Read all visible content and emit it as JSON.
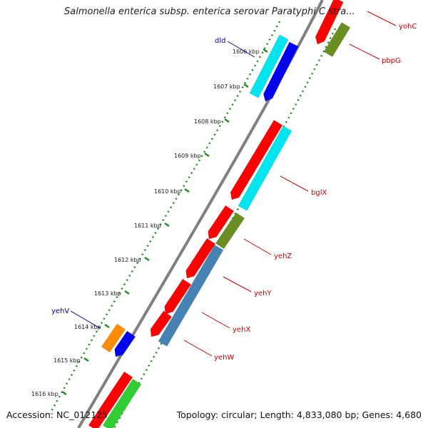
{
  "title": "Salmonella enterica subsp. enterica serovar Paratyphi C stra...",
  "accession": "Accession: NC_012125",
  "summary": "Topology: circular; Length: 4,833,080 bp; Genes: 4,680",
  "ticks": [
    "1606 kbp",
    "1607 kbp",
    "1608 kbp",
    "1609 kbp",
    "1610 kbp",
    "1611 kbp",
    "1612 kbp",
    "1613 kbp",
    "1614 kbp",
    "1615 kbp",
    "1616 kbp"
  ],
  "genes": [
    {
      "name": "yohC",
      "color": "#cc0000"
    },
    {
      "name": "pbpG",
      "color": "#cc0000"
    },
    {
      "name": "dld",
      "color": "#0000aa"
    },
    {
      "name": "bglX",
      "color": "#cc0000"
    },
    {
      "name": "yehZ",
      "color": "#cc0000"
    },
    {
      "name": "yehY",
      "color": "#cc0000"
    },
    {
      "name": "yehX",
      "color": "#cc0000"
    },
    {
      "name": "yehW",
      "color": "#cc0000"
    },
    {
      "name": "yehV",
      "color": "#0000aa"
    }
  ],
  "feature_colors": {
    "cds": "#ff0000",
    "cyan": "#00e5ee",
    "blue": "#0000ee",
    "olive": "#6b8e23",
    "steel": "#4682b4",
    "orange": "#ff8c00",
    "green": "#32cd32",
    "backbone": "#808080",
    "gc_dots": "#228b22"
  }
}
